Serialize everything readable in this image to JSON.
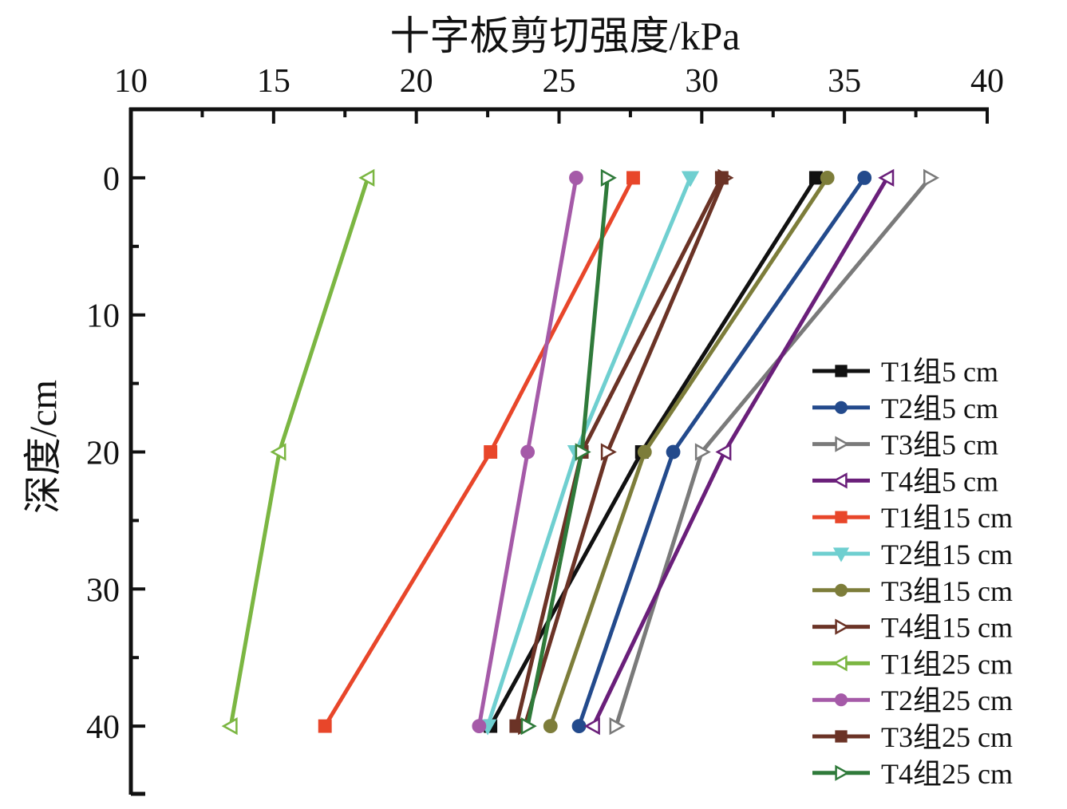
{
  "chart_data": {
    "type": "line",
    "title": "",
    "xlabel": "十字板剪切强度/kPa",
    "ylabel": "深度/cm",
    "x_axis_position": "top",
    "y_inverted": true,
    "xlim": [
      10,
      40
    ],
    "ylim": [
      -5,
      45
    ],
    "x_ticks": [
      "10",
      "15",
      "20",
      "25",
      "30",
      "35",
      "40"
    ],
    "y_ticks": [
      "0",
      "10",
      "20",
      "30",
      "40"
    ],
    "grid": false,
    "legend_position": "right",
    "depths": [
      0,
      20,
      40
    ],
    "series": [
      {
        "name": "T1组5 cm",
        "color": "#111111",
        "marker": "square-filled",
        "x": [
          34.0,
          27.9,
          22.6
        ]
      },
      {
        "name": "T2组5 cm",
        "color": "#234a8c",
        "marker": "circle-filled",
        "x": [
          35.7,
          29.0,
          25.7
        ]
      },
      {
        "name": "T3组5 cm",
        "color": "#7a7a7a",
        "marker": "triangle-right-open",
        "x": [
          38.0,
          30.0,
          27.0
        ]
      },
      {
        "name": "T4组5 cm",
        "color": "#6a1f7a",
        "marker": "triangle-left-open",
        "x": [
          36.5,
          30.8,
          26.2
        ]
      },
      {
        "name": "T1组15 cm",
        "color": "#e8462a",
        "marker": "square-filled",
        "x": [
          27.6,
          22.6,
          16.8
        ]
      },
      {
        "name": "T2组15 cm",
        "color": "#6fcfd0",
        "marker": "triangle-down-filled",
        "x": [
          29.6,
          25.6,
          22.5
        ]
      },
      {
        "name": "T3组15 cm",
        "color": "#7d7d3a",
        "marker": "circle-filled",
        "x": [
          34.4,
          28.0,
          24.7
        ]
      },
      {
        "name": "T4组15 cm",
        "color": "#6b3326",
        "marker": "triangle-right-open",
        "x": [
          30.8,
          26.7,
          23.8
        ]
      },
      {
        "name": "T1组25 cm",
        "color": "#7bb642",
        "marker": "triangle-left-open",
        "x": [
          18.3,
          15.2,
          13.5
        ]
      },
      {
        "name": "T2组25 cm",
        "color": "#a55aa8",
        "marker": "circle-filled",
        "x": [
          25.6,
          23.9,
          22.2
        ]
      },
      {
        "name": "T3组25 cm",
        "color": "#6b3326",
        "marker": "square-filled",
        "x": [
          30.7,
          25.8,
          23.5
        ]
      },
      {
        "name": "T4组25 cm",
        "color": "#2f7a3a",
        "marker": "triangle-right-open",
        "x": [
          26.7,
          25.8,
          23.9
        ]
      }
    ]
  }
}
